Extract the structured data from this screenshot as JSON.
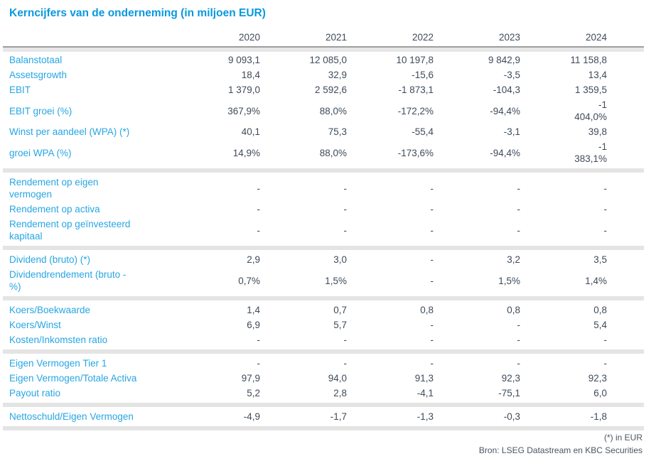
{
  "title": "Kerncijfers van de onderneming (in miljoen EUR)",
  "colors": {
    "title_blue": "#0899df",
    "label_blue": "#27a6e3",
    "value_gray": "#3f4b5a",
    "divider_gray": "#e4e4e4",
    "header_rule_gray": "#9f9f9f"
  },
  "table": {
    "year_headers": [
      "2020",
      "2021",
      "2022",
      "2023",
      "2024"
    ],
    "sections": [
      {
        "rows": [
          {
            "label": "Balanstotaal",
            "values": [
              "9 093,1",
              "12 085,0",
              "10 197,8",
              "9 842,9",
              "11 158,8"
            ]
          },
          {
            "label": "Assetsgrowth",
            "values": [
              "18,4",
              "32,9",
              "-15,6",
              "-3,5",
              "13,4"
            ]
          },
          {
            "label": "EBIT",
            "values": [
              "1 379,0",
              "2 592,6",
              "-1 873,1",
              "-104,3",
              "1 359,5"
            ]
          },
          {
            "label": "EBIT groei (%)",
            "values": [
              "367,9%",
              "88,0%",
              "-172,2%",
              "-94,4%",
              "-1\n404,0%"
            ]
          },
          {
            "label": "Winst per aandeel (WPA) (*)",
            "values": [
              "40,1",
              "75,3",
              "-55,4",
              "-3,1",
              "39,8"
            ]
          },
          {
            "label": "groei WPA (%)",
            "values": [
              "14,9%",
              "88,0%",
              "-173,6%",
              "-94,4%",
              "-1\n383,1%"
            ]
          }
        ]
      },
      {
        "rows": [
          {
            "label": "Rendement op eigen\nvermogen",
            "values": [
              "-",
              "-",
              "-",
              "-",
              "-"
            ]
          },
          {
            "label": "Rendement op activa",
            "values": [
              "-",
              "-",
              "-",
              "-",
              "-"
            ]
          },
          {
            "label": "Rendement op geïnvesteerd\nkapitaal",
            "values": [
              "-",
              "-",
              "-",
              "-",
              "-"
            ]
          }
        ]
      },
      {
        "rows": [
          {
            "label": "Dividend (bruto) (*)",
            "values": [
              "2,9",
              "3,0",
              "-",
              "3,2",
              "3,5"
            ]
          },
          {
            "label": "Dividendrendement (bruto -\n%)",
            "values": [
              "0,7%",
              "1,5%",
              "-",
              "1,5%",
              "1,4%"
            ]
          }
        ]
      },
      {
        "rows": [
          {
            "label": "Koers/Boekwaarde",
            "values": [
              "1,4",
              "0,7",
              "0,8",
              "0,8",
              "0,8"
            ]
          },
          {
            "label": "Koers/Winst",
            "values": [
              "6,9",
              "5,7",
              "-",
              "-",
              "5,4"
            ]
          },
          {
            "label": "Kosten/Inkomsten ratio",
            "values": [
              "-",
              "-",
              "-",
              "-",
              "-"
            ]
          }
        ]
      },
      {
        "rows": [
          {
            "label": "Eigen Vermogen Tier 1",
            "values": [
              "-",
              "-",
              "-",
              "-",
              "-"
            ]
          },
          {
            "label": "Eigen Vermogen/Totale Activa",
            "values": [
              "97,9",
              "94,0",
              "91,3",
              "92,3",
              "92,3"
            ]
          },
          {
            "label": "Payout ratio",
            "values": [
              "5,2",
              "2,8",
              "-4,1",
              "-75,1",
              "6,0"
            ]
          }
        ]
      },
      {
        "rows": [
          {
            "label": "Nettoschuld/Eigen Vermogen",
            "values": [
              "-4,9",
              "-1,7",
              "-1,3",
              "-0,3",
              "-1,8"
            ]
          }
        ]
      }
    ]
  },
  "footnotes": {
    "unit_note": "(*) in EUR",
    "source": "Bron: LSEG Datastream en KBC Securities"
  }
}
